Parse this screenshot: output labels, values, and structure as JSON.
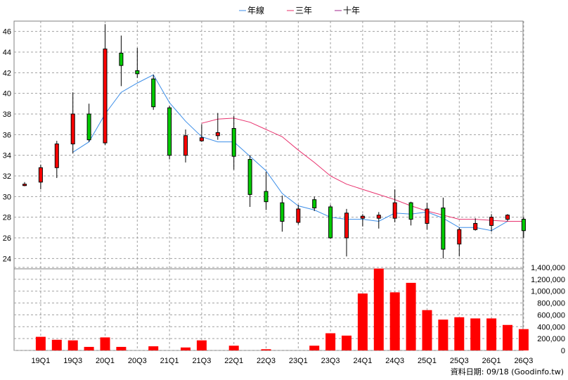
{
  "chart_data": {
    "type": "candlestick",
    "legend": {
      "placement": "top-center",
      "items": [
        {
          "label": "年線",
          "color": "#3c8ee8"
        },
        {
          "label": "三年",
          "color": "#e8326e"
        },
        {
          "label": "十年",
          "color": "#a0248c"
        }
      ]
    },
    "grid": true,
    "x_ticks": [
      "19Q1",
      "19Q3",
      "20Q1",
      "20Q3",
      "21Q1",
      "21Q3",
      "22Q1",
      "22Q3",
      "23Q1",
      "23Q3",
      "24Q1",
      "24Q3",
      "25Q1",
      "25Q3",
      "26Q1",
      "26Q3"
    ],
    "price_axis": {
      "ylim": [
        23,
        47
      ],
      "ticks": [
        "24",
        "26",
        "28",
        "30",
        "32",
        "34",
        "36",
        "38",
        "40",
        "42",
        "44",
        "46"
      ]
    },
    "volume_axis": {
      "ylim": [
        0,
        1400000
      ],
      "ticks": [
        "0",
        "200,000",
        "400,000",
        "600,000",
        "800,000",
        "1,000,000",
        "1,200,000",
        "1,400,000"
      ]
    },
    "candles": [
      {
        "period": "18Q4",
        "open": 31.2,
        "close": 31.2,
        "high": 31.4,
        "low": 31.0,
        "volume": 0
      },
      {
        "period": "19Q1",
        "open": 31.4,
        "close": 32.8,
        "high": 33.1,
        "low": 30.7,
        "volume": 230000
      },
      {
        "period": "19Q2",
        "open": 32.8,
        "close": 35.1,
        "high": 35.4,
        "low": 31.8,
        "volume": 180000
      },
      {
        "period": "19Q3",
        "open": 35.1,
        "close": 38.0,
        "high": 40.1,
        "low": 34.2,
        "volume": 170000
      },
      {
        "period": "19Q4",
        "open": 38.0,
        "close": 35.5,
        "high": 39.0,
        "low": 35.3,
        "volume": 60000
      },
      {
        "period": "20Q1",
        "open": 35.2,
        "close": 44.3,
        "high": 46.7,
        "low": 35.0,
        "volume": 220000
      },
      {
        "period": "20Q2",
        "open": 43.9,
        "close": 42.7,
        "high": 45.6,
        "low": 40.7,
        "volume": 60000
      },
      {
        "period": "20Q3",
        "open": 42.2,
        "close": 41.9,
        "high": 44.4,
        "low": 41.5,
        "volume": 0
      },
      {
        "period": "20Q4",
        "open": 41.4,
        "close": 38.7,
        "high": 41.8,
        "low": 38.4,
        "volume": 70000
      },
      {
        "period": "21Q1",
        "open": 38.6,
        "close": 34.0,
        "high": 38.8,
        "low": 33.6,
        "volume": 0
      },
      {
        "period": "21Q2",
        "open": 34.0,
        "close": 35.9,
        "high": 36.5,
        "low": 33.3,
        "volume": 50000
      },
      {
        "period": "21Q3",
        "open": 35.4,
        "close": 35.7,
        "high": 37.0,
        "low": 35.3,
        "volume": 170000
      },
      {
        "period": "21Q4",
        "open": 35.9,
        "close": 36.2,
        "high": 38.1,
        "low": 35.5,
        "volume": 0
      },
      {
        "period": "22Q1",
        "open": 36.6,
        "close": 33.9,
        "high": 37.8,
        "low": 32.6,
        "volume": 80000
      },
      {
        "period": "22Q2",
        "open": 33.6,
        "close": 30.2,
        "high": 34.0,
        "low": 29.0,
        "volume": 0
      },
      {
        "period": "22Q3",
        "open": 30.5,
        "close": 29.5,
        "high": 32.4,
        "low": 28.7,
        "volume": 20000
      },
      {
        "period": "22Q4",
        "open": 29.4,
        "close": 27.6,
        "high": 30.1,
        "low": 26.6,
        "volume": 0
      },
      {
        "period": "23Q1",
        "open": 27.5,
        "close": 28.8,
        "high": 29.2,
        "low": 27.3,
        "volume": 0
      },
      {
        "period": "23Q2",
        "open": 29.7,
        "close": 28.9,
        "high": 30.0,
        "low": 28.6,
        "volume": 80000
      },
      {
        "period": "23Q3",
        "open": 29.0,
        "close": 26.0,
        "high": 29.2,
        "low": 25.9,
        "volume": 290000
      },
      {
        "period": "23Q4",
        "open": 26.0,
        "close": 28.4,
        "high": 28.8,
        "low": 24.2,
        "volume": 250000
      },
      {
        "period": "24Q1",
        "open": 27.9,
        "close": 28.1,
        "high": 28.3,
        "low": 27.1,
        "volume": 960000
      },
      {
        "period": "24Q2",
        "open": 27.9,
        "close": 28.2,
        "high": 28.5,
        "low": 26.9,
        "volume": 1380000
      },
      {
        "period": "24Q3",
        "open": 27.9,
        "close": 29.4,
        "high": 30.7,
        "low": 27.5,
        "volume": 980000
      },
      {
        "period": "24Q4",
        "open": 29.4,
        "close": 27.8,
        "high": 29.5,
        "low": 27.2,
        "volume": 1140000
      },
      {
        "period": "25Q1",
        "open": 27.4,
        "close": 28.8,
        "high": 29.4,
        "low": 26.8,
        "volume": 680000
      },
      {
        "period": "25Q2",
        "open": 28.9,
        "close": 24.9,
        "high": 29.9,
        "low": 24.0,
        "volume": 520000
      },
      {
        "period": "25Q3",
        "open": 25.4,
        "close": 26.8,
        "high": 27.0,
        "low": 24.2,
        "volume": 560000
      },
      {
        "period": "25Q4",
        "open": 26.8,
        "close": 27.4,
        "high": 27.9,
        "low": 26.7,
        "volume": 540000
      },
      {
        "period": "26Q1",
        "open": 27.2,
        "close": 28.0,
        "high": 28.3,
        "low": 26.6,
        "volume": 540000
      },
      {
        "period": "26Q2",
        "open": 27.8,
        "close": 28.2,
        "high": 28.3,
        "low": 27.6,
        "volume": 430000
      },
      {
        "period": "26Q3",
        "open": 27.8,
        "close": 26.7,
        "high": 28.0,
        "low": 26.0,
        "volume": 360000
      }
    ],
    "series": [
      {
        "name": "年線",
        "points": [
          {
            "period": "19Q3",
            "value": 34.3
          },
          {
            "period": "19Q4",
            "value": 35.3
          },
          {
            "period": "20Q1",
            "value": 38.0
          },
          {
            "period": "20Q2",
            "value": 40.1
          },
          {
            "period": "20Q3",
            "value": 41.0
          },
          {
            "period": "20Q4",
            "value": 41.8
          },
          {
            "period": "21Q1",
            "value": 39.1
          },
          {
            "period": "21Q2",
            "value": 37.3
          },
          {
            "period": "21Q3",
            "value": 35.8
          },
          {
            "period": "21Q4",
            "value": 35.3
          },
          {
            "period": "22Q1",
            "value": 35.3
          },
          {
            "period": "22Q2",
            "value": 33.9
          },
          {
            "period": "22Q3",
            "value": 32.5
          },
          {
            "period": "22Q4",
            "value": 30.3
          },
          {
            "period": "23Q1",
            "value": 29.1
          },
          {
            "period": "23Q2",
            "value": 28.7
          },
          {
            "period": "23Q3",
            "value": 28.0
          },
          {
            "period": "23Q4",
            "value": 27.8
          },
          {
            "period": "24Q1",
            "value": 27.8
          },
          {
            "period": "24Q2",
            "value": 27.6
          },
          {
            "period": "24Q3",
            "value": 28.4
          },
          {
            "period": "24Q4",
            "value": 28.3
          },
          {
            "period": "25Q1",
            "value": 28.5
          },
          {
            "period": "25Q2",
            "value": 27.9
          },
          {
            "period": "25Q3",
            "value": 27.0
          },
          {
            "period": "25Q4",
            "value": 27.0
          },
          {
            "period": "26Q1",
            "value": 26.7
          },
          {
            "period": "26Q2",
            "value": 27.6
          },
          {
            "period": "26Q3",
            "value": 27.6
          }
        ]
      },
      {
        "name": "三年",
        "points": [
          {
            "period": "21Q3",
            "value": 37.1
          },
          {
            "period": "21Q4",
            "value": 37.5
          },
          {
            "period": "22Q1",
            "value": 37.6
          },
          {
            "period": "22Q2",
            "value": 37.2
          },
          {
            "period": "22Q3",
            "value": 36.5
          },
          {
            "period": "22Q4",
            "value": 35.8
          },
          {
            "period": "23Q1",
            "value": 34.5
          },
          {
            "period": "23Q2",
            "value": 33.3
          },
          {
            "period": "23Q3",
            "value": 32.0
          },
          {
            "period": "23Q4",
            "value": 31.2
          },
          {
            "period": "24Q1",
            "value": 30.7
          },
          {
            "period": "24Q2",
            "value": 30.2
          },
          {
            "period": "24Q3",
            "value": 29.7
          },
          {
            "period": "24Q4",
            "value": 29.1
          },
          {
            "period": "25Q1",
            "value": 28.6
          },
          {
            "period": "25Q2",
            "value": 28.2
          },
          {
            "period": "25Q3",
            "value": 27.8
          },
          {
            "period": "25Q4",
            "value": 27.8
          },
          {
            "period": "26Q1",
            "value": 27.7
          },
          {
            "period": "26Q2",
            "value": 27.6
          },
          {
            "period": "26Q3",
            "value": 27.6
          }
        ]
      }
    ]
  },
  "footer": {
    "note": "資料日期: 09/18  (Goodinfo.tw)"
  }
}
